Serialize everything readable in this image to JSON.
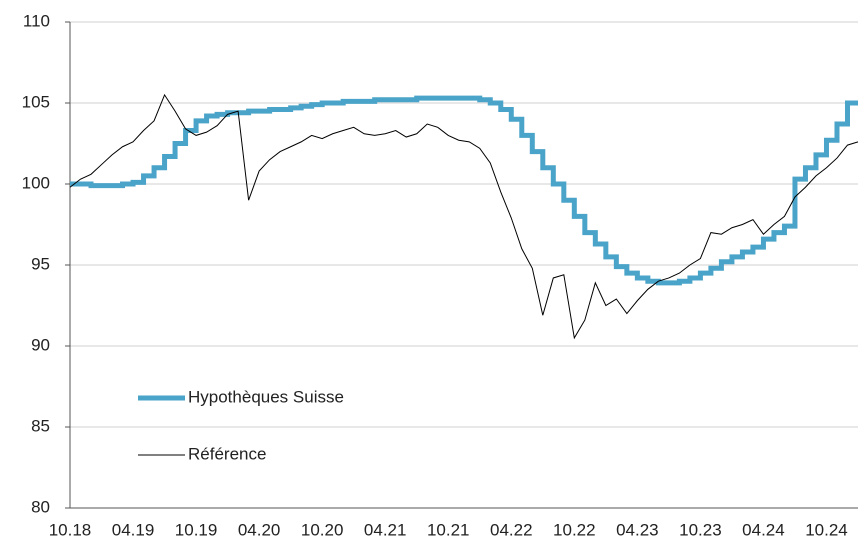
{
  "chart_data": {
    "type": "line",
    "categories": [
      "10.18",
      null,
      null,
      null,
      null,
      null,
      "04.19",
      null,
      null,
      null,
      null,
      null,
      "10.19",
      null,
      null,
      null,
      null,
      null,
      "04.20",
      null,
      null,
      null,
      null,
      null,
      "10.20",
      null,
      null,
      null,
      null,
      null,
      "04.21",
      null,
      null,
      null,
      null,
      null,
      "10.21",
      null,
      null,
      null,
      null,
      null,
      "04.22",
      null,
      null,
      null,
      null,
      null,
      "10.22",
      null,
      null,
      null,
      null,
      null,
      "04.23",
      null,
      null,
      null,
      null,
      null,
      "10.23",
      null,
      null,
      null,
      null,
      null,
      "04.24",
      null,
      null,
      null,
      null,
      null,
      "10.24",
      null,
      null,
      null
    ],
    "series": [
      {
        "name": "Hypothèques Suisse",
        "color": "#4aa3c8",
        "style": "step",
        "values": [
          100.0,
          100.0,
          99.9,
          99.9,
          99.9,
          100.0,
          100.1,
          100.5,
          101.0,
          101.7,
          102.5,
          103.3,
          103.9,
          104.2,
          104.3,
          104.4,
          104.4,
          104.5,
          104.5,
          104.6,
          104.6,
          104.7,
          104.8,
          104.9,
          105.0,
          105.0,
          105.1,
          105.1,
          105.1,
          105.2,
          105.2,
          105.2,
          105.2,
          105.3,
          105.3,
          105.3,
          105.3,
          105.3,
          105.3,
          105.2,
          105.0,
          104.6,
          104.0,
          103.0,
          102.0,
          101.0,
          100.0,
          99.0,
          98.0,
          97.0,
          96.3,
          95.5,
          94.9,
          94.5,
          94.2,
          94.0,
          93.9,
          93.9,
          94.0,
          94.2,
          94.5,
          94.8,
          95.2,
          95.5,
          95.8,
          96.1,
          96.6,
          97.0,
          97.4,
          100.3,
          101.0,
          101.8,
          102.7,
          103.7,
          105.0,
          105.0
        ]
      },
      {
        "name": "Référence",
        "color": "#000000",
        "style": "line",
        "values": [
          99.8,
          100.3,
          100.6,
          101.2,
          101.8,
          102.3,
          102.6,
          103.3,
          103.9,
          105.5,
          104.5,
          103.4,
          103.0,
          103.2,
          103.6,
          104.3,
          104.5,
          99.0,
          100.8,
          101.5,
          102.0,
          102.3,
          102.6,
          103.0,
          102.8,
          103.1,
          103.3,
          103.5,
          103.1,
          103.0,
          103.1,
          103.3,
          102.9,
          103.1,
          103.7,
          103.5,
          103.0,
          102.7,
          102.6,
          102.2,
          101.3,
          99.5,
          97.9,
          96.0,
          94.8,
          91.9,
          94.2,
          94.4,
          90.5,
          91.6,
          93.9,
          92.5,
          92.9,
          92.0,
          92.8,
          93.5,
          94.0,
          94.2,
          94.5,
          95.0,
          95.4,
          97.0,
          96.9,
          97.3,
          97.5,
          97.8,
          96.9,
          97.5,
          98.0,
          99.2,
          99.8,
          100.5,
          101.0,
          101.6,
          102.4,
          102.6
        ]
      }
    ],
    "ylim": [
      80,
      110
    ],
    "yticks": [
      80,
      85,
      90,
      95,
      100,
      105,
      110
    ],
    "grid": true,
    "legend": "lower left"
  }
}
